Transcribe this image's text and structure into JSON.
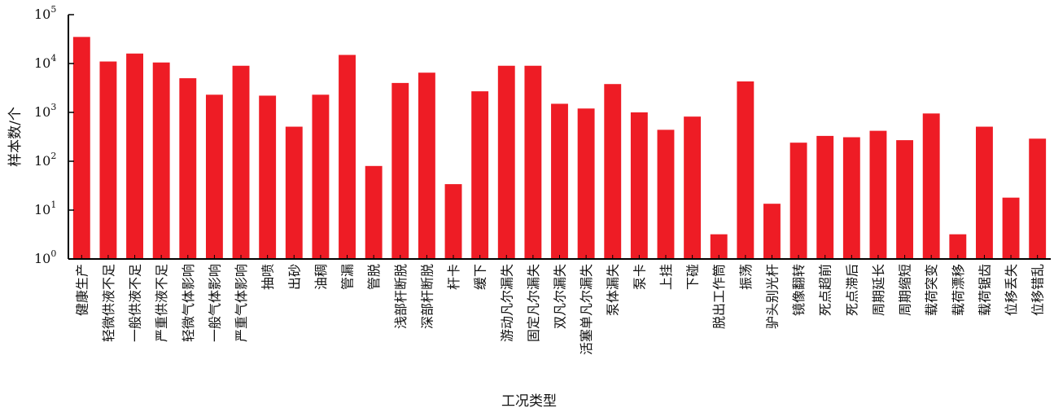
{
  "chart_data": {
    "type": "bar",
    "xlabel": "工况类型",
    "ylabel": "样本数/个",
    "yscale": "log",
    "ylim": [
      1,
      100000
    ],
    "yticks": [
      {
        "base": "10",
        "exp": "0"
      },
      {
        "base": "10",
        "exp": "1"
      },
      {
        "base": "10",
        "exp": "2"
      },
      {
        "base": "10",
        "exp": "3"
      },
      {
        "base": "10",
        "exp": "4"
      },
      {
        "base": "10",
        "exp": "5"
      }
    ],
    "bar_color": "#ee1c25",
    "categories": [
      "健康生产",
      "轻微供液不足",
      "一般供液不足",
      "严重供液不足",
      "轻微气体影响",
      "一般气体影响",
      "严重气体影响",
      "抽喷",
      "出砂",
      "油稠",
      "管漏",
      "管脱",
      "浅部杆断脱",
      "深部杆断脱",
      "杆卡",
      "缓下",
      "游动凡尔漏失",
      "固定凡尔漏失",
      "双凡尔漏失",
      "活塞单凡尔漏失",
      "泵体漏失",
      "泵卡",
      "上挂",
      "下碰",
      "脱出工作筒",
      "振荡",
      "驴头别光杆",
      "镜像翻转",
      "死点超前",
      "死点滞后",
      "周期延长",
      "周期缩短",
      "载荷突变",
      "载荷漂移",
      "载荷锯齿",
      "位移丢失",
      "位移错乱"
    ],
    "values": [
      35000,
      11000,
      16000,
      10500,
      5000,
      2300,
      9000,
      2200,
      510,
      2300,
      15000,
      80,
      4000,
      6500,
      34,
      2700,
      9000,
      9000,
      1500,
      1200,
      3800,
      1000,
      440,
      820,
      3.2,
      4300,
      13.5,
      240,
      330,
      310,
      420,
      270,
      950,
      3.2,
      510,
      18,
      290
    ]
  }
}
